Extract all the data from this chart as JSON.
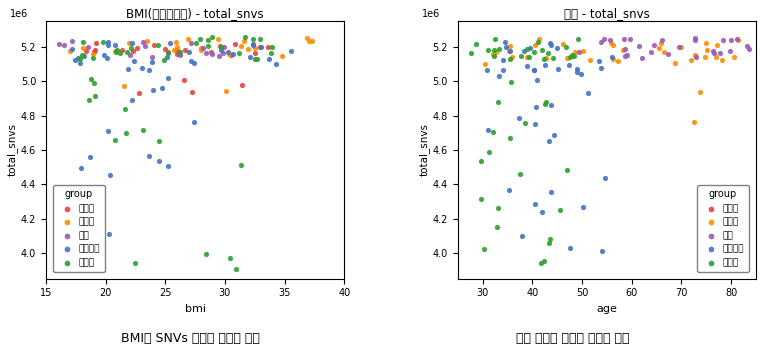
{
  "title_left": "BMI(체질량지수) - total_snvs",
  "title_right": "나이 - total_snvs",
  "xlabel_left": "bmi",
  "xlabel_right": "age",
  "ylabel": "total_snvs",
  "caption_left": "BMI와 SNVs 충합은 관련이 없음",
  "caption_right": "질환 집단에 고연령 샘플이 많음",
  "groups": [
    "유방암",
    "대장암",
    "위암",
    "고지혁증",
    "건강인"
  ],
  "group_colors": [
    "#e84040",
    "#ff8c00",
    "#9b59b6",
    "#4472c4",
    "#2ca02c"
  ],
  "ylim": [
    3850000.0,
    5350000.0
  ],
  "bmi_xlim": [
    15,
    40
  ],
  "age_xlim": [
    25,
    85
  ],
  "yticks": [
    4.0,
    4.2,
    4.4,
    4.6,
    4.8,
    5.0,
    5.2
  ],
  "bmi_xticks": [
    15,
    20,
    25,
    30,
    35,
    40
  ],
  "age_xticks": [
    30,
    40,
    50,
    60,
    70,
    80
  ]
}
